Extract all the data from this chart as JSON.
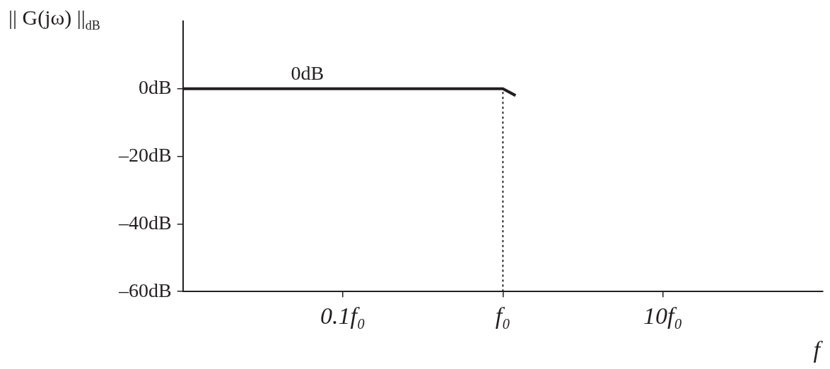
{
  "chart_data": {
    "type": "line",
    "xlabel": "f",
    "ylabel": "|| G(jω) ||$_{dB}$",
    "log": "x",
    "grid": false,
    "legend": false,
    "marker": "none",
    "line_style": "solid",
    "xlim": [
      0.01,
      100
    ],
    "xticks": [
      {
        "value": 0.1,
        "label": "0.1f₀"
      },
      {
        "value": 1,
        "label": "f₀"
      },
      {
        "value": 10,
        "label": "10f₀"
      }
    ],
    "ylim": [
      -60,
      20
    ],
    "yticks": [
      {
        "value": -60,
        "label": "–60dB"
      },
      {
        "value": -40,
        "label": "–40dB"
      },
      {
        "value": -20,
        "label": "–20dB"
      },
      {
        "value": 0,
        "label": "0dB"
      }
    ],
    "series": [
      {
        "color": "#231f20",
        "x": [
          0.01,
          1,
          1.2
        ],
        "values": [
          0,
          0,
          -2
        ]
      }
    ],
    "ref_lines": [
      {
        "axis": "x",
        "value": 1,
        "line_style": "dotted",
        "color": "#231f20"
      }
    ],
    "annotations": [
      {
        "text": "0dB",
        "x": 0.06,
        "y": 0
      }
    ]
  }
}
